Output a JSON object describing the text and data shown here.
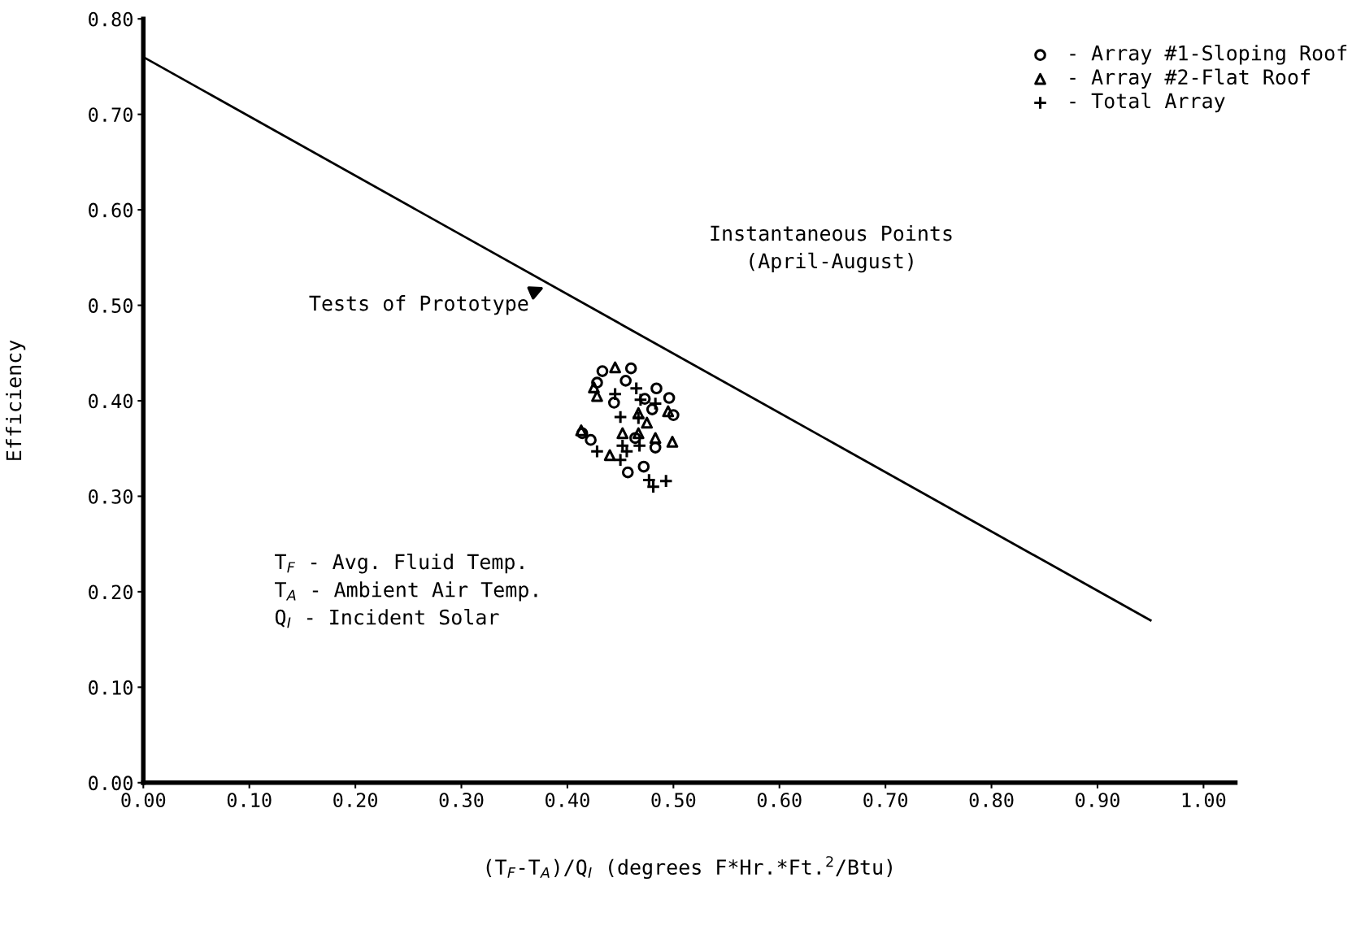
{
  "chart_data": {
    "type": "scatter",
    "xlabel": "(T$_{F}$-T$_{A}$)/Q$_{I}$ (degrees F*Hr.*Ft.$^{2}$/Btu)",
    "ylabel": "Efficiency",
    "xlim": [
      0,
      1.03
    ],
    "ylim": [
      0,
      0.8
    ],
    "xticks": [
      {
        "value": 0,
        "label": "0.00"
      },
      {
        "value": 0.1,
        "label": "0.10"
      },
      {
        "value": 0.2,
        "label": "0.20"
      },
      {
        "value": 0.3,
        "label": "0.30"
      },
      {
        "value": 0.4,
        "label": "0.40"
      },
      {
        "value": 0.5,
        "label": "0.50"
      },
      {
        "value": 0.6,
        "label": "0.60"
      },
      {
        "value": 0.7,
        "label": "0.70"
      },
      {
        "value": 0.8,
        "label": "0.80"
      },
      {
        "value": 0.9,
        "label": "0.90"
      },
      {
        "value": 1.0,
        "label": "1.00"
      }
    ],
    "yticks": [
      {
        "value": 0,
        "label": "0.00"
      },
      {
        "value": 0.1,
        "label": "0.10"
      },
      {
        "value": 0.2,
        "label": "0.20"
      },
      {
        "value": 0.3,
        "label": "0.30"
      },
      {
        "value": 0.4,
        "label": "0.40"
      },
      {
        "value": 0.5,
        "label": "0.50"
      },
      {
        "value": 0.6,
        "label": "0.60"
      },
      {
        "value": 0.7,
        "label": "0.70"
      },
      {
        "value": 0.8,
        "label": "0.80"
      }
    ],
    "grid": false,
    "legend": "top right",
    "series": [
      {
        "type": "line",
        "color": "#000000",
        "marker": "none",
        "x": [
          0,
          0.95
        ],
        "values": [
          0.76,
          0.17
        ]
      },
      {
        "name": "- Array #1-Sloping Roof",
        "color": "#000000",
        "marker": "circle",
        "x": [
          0.433,
          0.46,
          0.455,
          0.428,
          0.484,
          0.444,
          0.473,
          0.496,
          0.5,
          0.48,
          0.414,
          0.422,
          0.483,
          0.457,
          0.472,
          0.464
        ],
        "values": [
          0.431,
          0.434,
          0.421,
          0.419,
          0.413,
          0.398,
          0.402,
          0.403,
          0.385,
          0.391,
          0.366,
          0.359,
          0.351,
          0.325,
          0.331,
          0.361
        ]
      },
      {
        "name": "- Array #2-Flat Roof",
        "color": "#000000",
        "marker": "triangle",
        "x": [
          0.445,
          0.428,
          0.425,
          0.495,
          0.475,
          0.467,
          0.413,
          0.452,
          0.467,
          0.499,
          0.44,
          0.483
        ],
        "values": [
          0.435,
          0.405,
          0.414,
          0.389,
          0.377,
          0.387,
          0.369,
          0.366,
          0.366,
          0.357,
          0.343,
          0.361
        ]
      },
      {
        "name": "- Total Array",
        "color": "#000000",
        "marker": "cross",
        "x": [
          0.465,
          0.445,
          0.469,
          0.483,
          0.45,
          0.467,
          0.452,
          0.428,
          0.468,
          0.45,
          0.477,
          0.493,
          0.481,
          0.456
        ],
        "values": [
          0.413,
          0.407,
          0.401,
          0.397,
          0.383,
          0.382,
          0.353,
          0.347,
          0.353,
          0.338,
          0.317,
          0.316,
          0.31,
          0.347
        ]
      }
    ],
    "annotations": [
      "Instantaneous Points\n(April-August)",
      {
        "text": "Tests of Prototype",
        "x": 0.38,
        "y": 0.52
      },
      "T$_{F}$ - Avg. Fluid Temp.\nT$_{A}$ - Ambient Air Temp.\nQ$_{I}$ - Incident Solar"
    ]
  }
}
